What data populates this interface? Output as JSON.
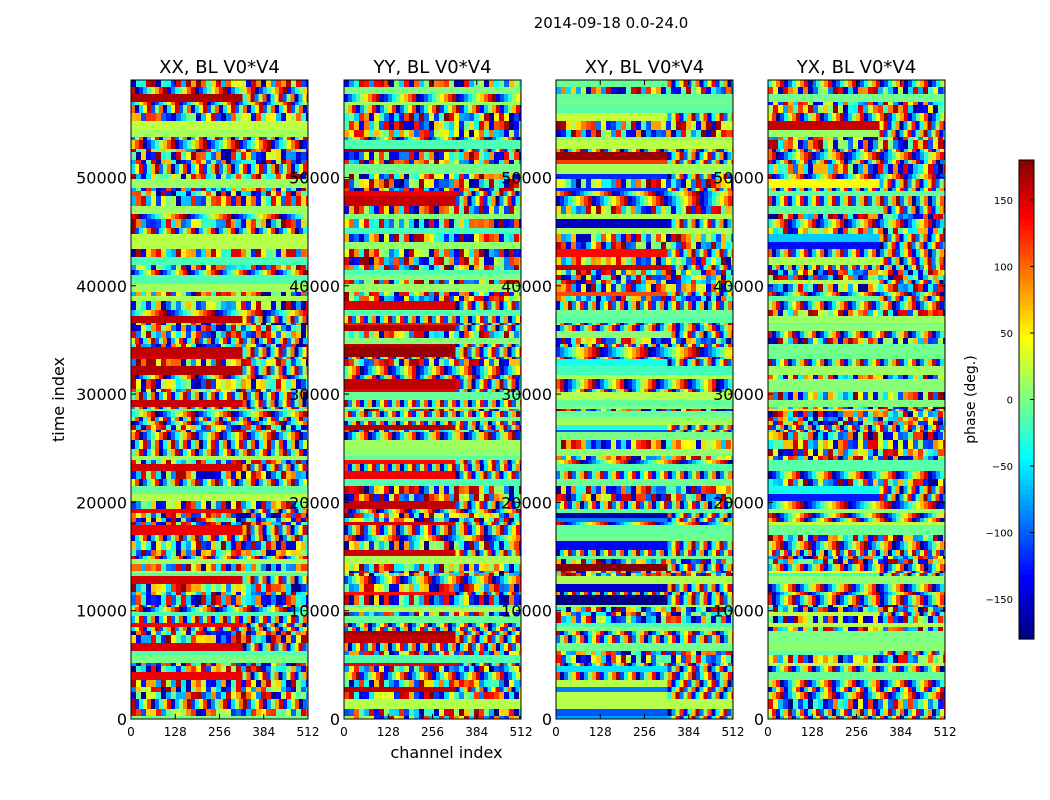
{
  "chart_data": {
    "type": "heatmap",
    "suptitle": "2014-09-18 0.0-24.0",
    "panels": [
      {
        "title": "XX, BL V0*V4",
        "show_xlabel": false,
        "show_ylabel": true
      },
      {
        "title": "YY, BL V0*V4",
        "show_xlabel": true,
        "show_ylabel": false
      },
      {
        "title": "XY, BL V0*V4",
        "show_xlabel": false,
        "show_ylabel": false
      },
      {
        "title": "YX, BL V0*V4",
        "show_xlabel": false,
        "show_ylabel": false
      }
    ],
    "xlabel": "channel index",
    "ylabel": "time index",
    "xlim": [
      0,
      512
    ],
    "ylim": [
      0,
      59000
    ],
    "xticks": [
      0,
      128,
      256,
      384,
      512
    ],
    "yticks": [
      0,
      10000,
      20000,
      30000,
      40000,
      50000
    ],
    "colorbar": {
      "label": "phase (deg.)",
      "range": [
        -180,
        180
      ],
      "ticks": [
        150,
        100,
        50,
        0,
        -50,
        -100,
        -150
      ],
      "tick_labels": [
        "150",
        "100",
        "50",
        "0",
        "−50",
        "−100",
        "−150"
      ],
      "colormap": "jet"
    }
  }
}
